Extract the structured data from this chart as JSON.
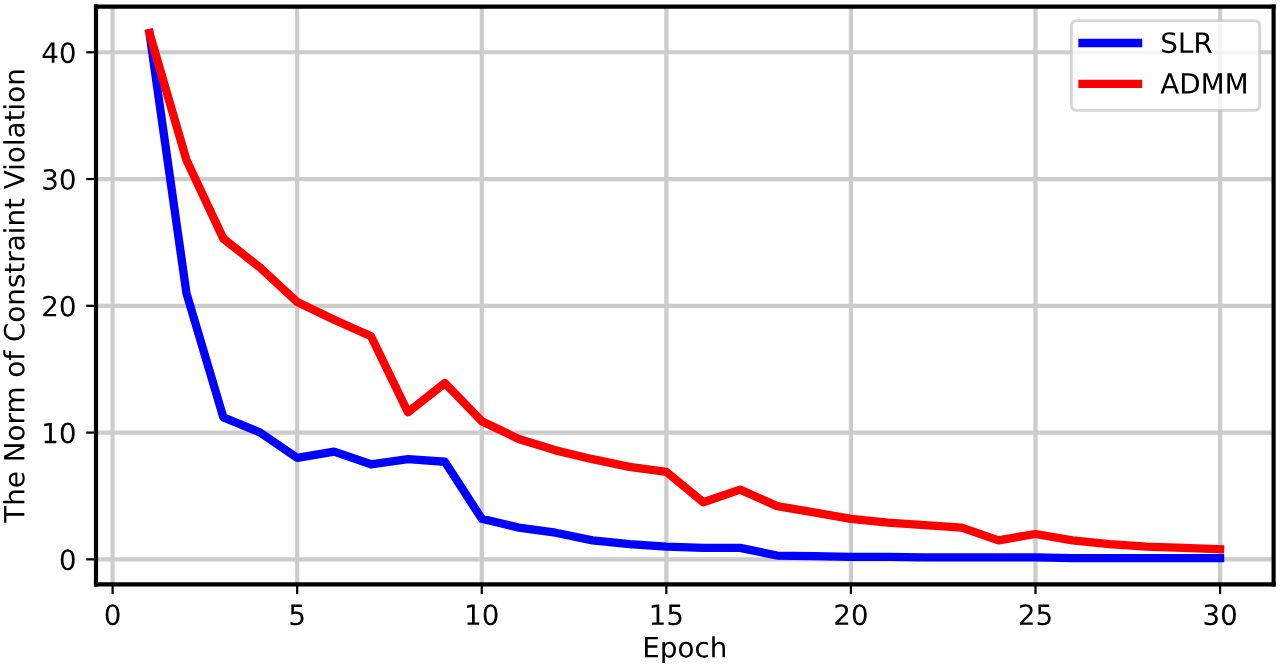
{
  "chart_data": {
    "type": "line",
    "xlabel": "Epoch",
    "ylabel": "The Norm of Constraint Violation",
    "x": [
      1,
      2,
      3,
      4,
      5,
      6,
      7,
      8,
      9,
      10,
      11,
      12,
      13,
      14,
      15,
      16,
      17,
      18,
      19,
      20,
      21,
      22,
      23,
      24,
      25,
      26,
      27,
      28,
      29,
      30
    ],
    "series": [
      {
        "name": "SLR",
        "color": "#0000ff",
        "values": [
          41.5,
          21,
          11.2,
          10,
          8,
          8.5,
          7.5,
          7.9,
          7.7,
          3.2,
          2.5,
          2.1,
          1.5,
          1.2,
          1.0,
          0.9,
          0.9,
          0.3,
          0.25,
          0.2,
          0.2,
          0.15,
          0.15,
          0.15,
          0.15,
          0.1,
          0.1,
          0.1,
          0.1,
          0.1
        ]
      },
      {
        "name": "ADMM",
        "color": "#ff0000",
        "values": [
          41.5,
          31.5,
          25.3,
          23,
          20.3,
          18.9,
          17.6,
          11.6,
          13.9,
          10.9,
          9.5,
          8.6,
          7.9,
          7.3,
          6.9,
          4.5,
          5.5,
          4.2,
          3.7,
          3.2,
          2.9,
          2.7,
          2.5,
          1.5,
          2.0,
          1.5,
          1.2,
          1.0,
          0.9,
          0.8
        ]
      }
    ],
    "xlim": [
      -0.45,
      31.45
    ],
    "ylim": [
      -1.97,
      43.6
    ],
    "xticks": [
      0,
      5,
      10,
      15,
      20,
      25,
      30
    ],
    "yticks": [
      0,
      10,
      20,
      30,
      40
    ],
    "grid": true,
    "legend": "top right",
    "line_style": "solid"
  }
}
